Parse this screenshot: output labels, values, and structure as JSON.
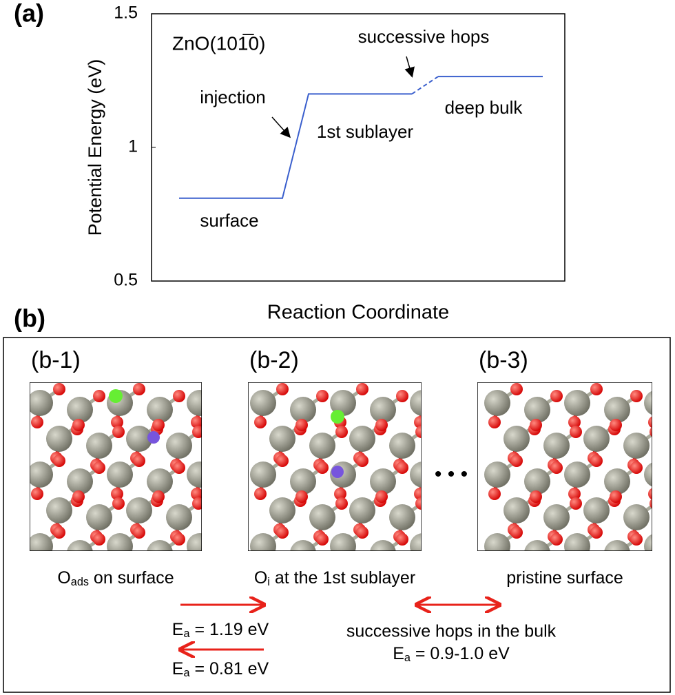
{
  "chart_data": {
    "type": "line",
    "panel_label": "(a)",
    "ylabel": "Potential Energy (eV)",
    "xlabel": "Reaction Coordinate",
    "ylim": [
      0.5,
      1.5
    ],
    "yticks": [
      0.5,
      1,
      1.5
    ],
    "xlim": [
      0,
      15
    ],
    "grid": false,
    "series": [
      {
        "color": "#3a5fcd",
        "dashed": false,
        "x": [
          1,
          4.75,
          5.7,
          9.45
        ],
        "values": [
          0.81,
          0.81,
          1.2,
          1.2
        ]
      },
      {
        "color": "#3a5fcd",
        "dashed": true,
        "x": [
          9.45,
          10.4
        ],
        "values": [
          1.2,
          1.265
        ]
      },
      {
        "color": "#3a5fcd",
        "dashed": false,
        "x": [
          10.4,
          14.2
        ],
        "values": [
          1.265,
          1.265
        ]
      }
    ],
    "annotations": [
      "ZnO(101̅0)",
      "successive hops",
      "injection",
      "1st sublayer",
      "deep bulk",
      "surface"
    ]
  },
  "panel_b": {
    "label": "(b)",
    "structures": [
      {
        "label": "(b-1)",
        "caption": {
          "main": "O",
          "sub": "ads",
          "rest": " on surface"
        }
      },
      {
        "label": "(b-2)",
        "caption": {
          "main": "O",
          "sub": "i",
          "rest": " at the 1st sublayer"
        }
      },
      {
        "label": "(b-3)",
        "caption": {
          "main": "pristine surface",
          "sub": "",
          "rest": ""
        }
      }
    ],
    "forward": {
      "main": "E",
      "sub": "a",
      "rest": " = 1.19 eV"
    },
    "backward": {
      "main": "E",
      "sub": "a",
      "rest": " = 0.81 eV"
    },
    "bulk_text": "successive hops in the bulk",
    "bulk": {
      "main": "E",
      "sub": "a",
      "rest": " = 0.9-1.0 eV"
    }
  }
}
